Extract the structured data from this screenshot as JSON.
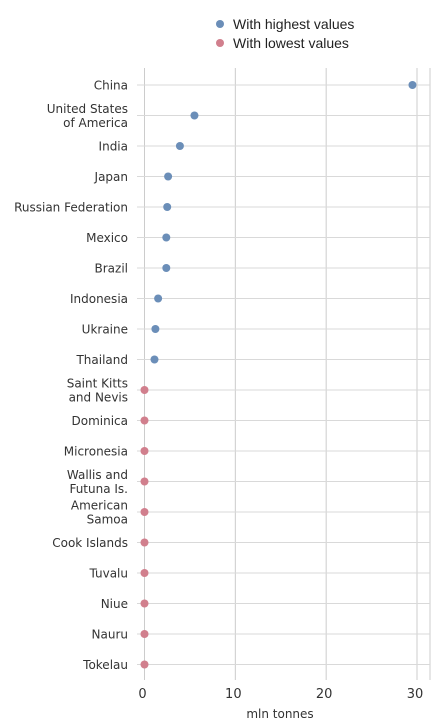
{
  "chart_data": {
    "type": "scatter",
    "title": "",
    "xlabel": "mln tonnes",
    "ylabel": "",
    "xlim": [
      -0.3,
      30.5
    ],
    "x_ticks": [
      0,
      10,
      20,
      30
    ],
    "grid": true,
    "legend_position": "top",
    "series": [
      {
        "name": "With highest values",
        "color": "#6b8eb8",
        "points": [
          {
            "category": "China",
            "value": 29.5
          },
          {
            "category": "United States of America",
            "value": 5.5
          },
          {
            "category": "India",
            "value": 3.9
          },
          {
            "category": "Japan",
            "value": 2.6
          },
          {
            "category": "Russian Federation",
            "value": 2.5
          },
          {
            "category": "Mexico",
            "value": 2.4
          },
          {
            "category": "Brazil",
            "value": 2.4
          },
          {
            "category": "Indonesia",
            "value": 1.5
          },
          {
            "category": "Ukraine",
            "value": 1.2
          },
          {
            "category": "Thailand",
            "value": 1.1
          }
        ]
      },
      {
        "name": "With lowest values",
        "color": "#d17f8d",
        "points": [
          {
            "category": "Saint Kitts and Nevis",
            "value": 0.0
          },
          {
            "category": "Dominica",
            "value": 0.0
          },
          {
            "category": "Micronesia",
            "value": 0.0
          },
          {
            "category": "Wallis and Futuna Is.",
            "value": 0.0
          },
          {
            "category": "American Samoa",
            "value": 0.0
          },
          {
            "category": "Cook Islands",
            "value": 0.0
          },
          {
            "category": "Tuvalu",
            "value": 0.0
          },
          {
            "category": "Niue",
            "value": 0.0
          },
          {
            "category": "Nauru",
            "value": 0.0
          },
          {
            "category": "Tokelau",
            "value": 0.0
          }
        ]
      }
    ],
    "category_label_lines": {
      "United States of America": [
        "United States",
        "of America"
      ],
      "Saint Kitts and Nevis": [
        "Saint Kitts",
        "and Nevis"
      ],
      "Wallis and Futuna Is.": [
        "Wallis and",
        "Futuna Is."
      ],
      "American Samoa": [
        "American",
        "Samoa"
      ]
    }
  }
}
